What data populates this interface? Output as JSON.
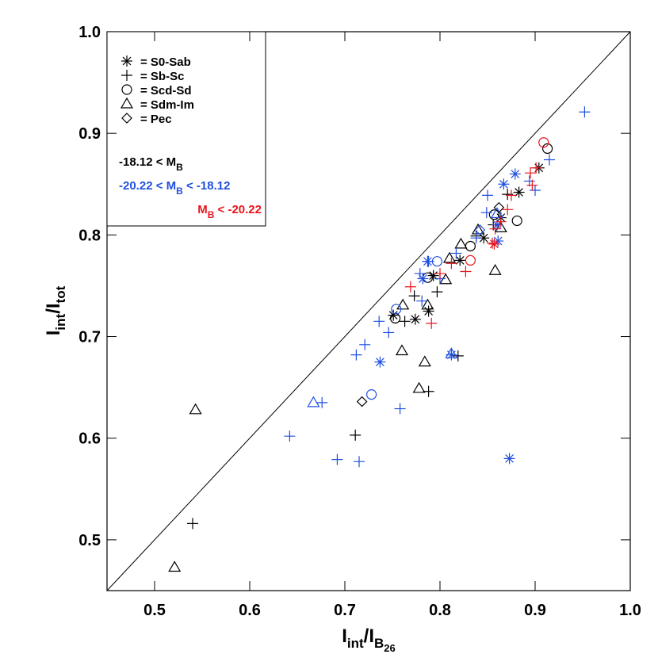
{
  "chart_data": {
    "type": "scatter",
    "xlim": [
      0.45,
      1.0
    ],
    "ylim": [
      0.45,
      1.0
    ],
    "xticks": [
      0.5,
      0.6,
      0.7,
      0.8,
      0.9,
      {
        "value": 1.0,
        "label": "1.0"
      }
    ],
    "yticks": [
      0.5,
      0.6,
      0.7,
      0.8,
      0.9,
      {
        "value": 1.0,
        "label": "1.0"
      }
    ],
    "xlabel": [
      {
        "text": "I"
      },
      {
        "text": "int",
        "level": 1
      },
      {
        "text": "/I"
      },
      {
        "text": "B",
        "level": 1
      },
      {
        "text": "26",
        "level": 2
      }
    ],
    "ylabel": [
      {
        "text": "I"
      },
      {
        "text": "int",
        "level": 1
      },
      {
        "text": "/I"
      },
      {
        "text": "tot",
        "level": 1
      }
    ],
    "identity_line": true,
    "marker_legend": [
      {
        "label": "= S0-Sab",
        "marker": "asterisk"
      },
      {
        "label": "= Sb-Sc",
        "marker": "plus"
      },
      {
        "label": "= Scd-Sd",
        "marker": "circle"
      },
      {
        "label": "= Sdm-Im",
        "marker": "triangle"
      },
      {
        "label": "= Pec",
        "marker": "diamond"
      }
    ],
    "color_legend": [
      {
        "text": "-18.12 < M",
        "sub": "B",
        "color": "#000000"
      },
      {
        "text": "-20.22 < M",
        "sub": "B",
        "after": " < -18.12",
        "color": "#1f4fe0"
      },
      {
        "text": "M",
        "sub": "B",
        "after": " < -20.22",
        "color": "#e8141c"
      }
    ],
    "series": [
      {
        "marker": "asterisk",
        "color": "#000000",
        "x": [
          0.904,
          0.883,
          0.846,
          0.821,
          0.793,
          0.788,
          0.774,
          0.751,
          0.864
        ],
        "y": [
          0.866,
          0.842,
          0.797,
          0.775,
          0.76,
          0.725,
          0.717,
          0.721,
          0.817
        ]
      },
      {
        "marker": "plus",
        "color": "#000000",
        "x": [
          0.711,
          0.54,
          0.788,
          0.819,
          0.763,
          0.773,
          0.797,
          0.838,
          0.856,
          0.871
        ],
        "y": [
          0.603,
          0.516,
          0.646,
          0.681,
          0.715,
          0.74,
          0.744,
          0.799,
          0.81,
          0.84
        ]
      },
      {
        "marker": "circle",
        "color": "#000000",
        "x": [
          0.913,
          0.881,
          0.857,
          0.832,
          0.787,
          0.753
        ],
        "y": [
          0.885,
          0.814,
          0.82,
          0.789,
          0.758,
          0.718
        ]
      },
      {
        "marker": "triangle",
        "color": "#000000",
        "x": [
          0.521,
          0.543,
          0.76,
          0.784,
          0.778,
          0.858,
          0.81,
          0.761,
          0.787,
          0.822,
          0.84,
          0.864,
          0.806
        ],
        "y": [
          0.473,
          0.628,
          0.686,
          0.675,
          0.649,
          0.765,
          0.777,
          0.731,
          0.731,
          0.791,
          0.805,
          0.807,
          0.756
        ]
      },
      {
        "marker": "diamond",
        "color": "#000000",
        "x": [
          0.718,
          0.862
        ],
        "y": [
          0.636,
          0.827
        ]
      },
      {
        "marker": "asterisk",
        "color": "#1f4fe0",
        "x": [
          0.873,
          0.737,
          0.812,
          0.879,
          0.867,
          0.861,
          0.86,
          0.787,
          0.782
        ],
        "y": [
          0.58,
          0.675,
          0.682,
          0.86,
          0.85,
          0.794,
          0.81,
          0.774,
          0.757
        ]
      },
      {
        "marker": "plus",
        "color": "#1f4fe0",
        "x": [
          0.952,
          0.915,
          0.9,
          0.894,
          0.85,
          0.849,
          0.642,
          0.692,
          0.715,
          0.758,
          0.712,
          0.721,
          0.736,
          0.746,
          0.781,
          0.779,
          0.788,
          0.8,
          0.817,
          0.838,
          0.676
        ],
        "y": [
          0.921,
          0.874,
          0.844,
          0.853,
          0.839,
          0.822,
          0.602,
          0.579,
          0.577,
          0.629,
          0.682,
          0.692,
          0.715,
          0.704,
          0.735,
          0.762,
          0.774,
          0.757,
          0.782,
          0.797,
          0.635
        ]
      },
      {
        "marker": "circle",
        "color": "#1f4fe0",
        "x": [
          0.728,
          0.754,
          0.797
        ],
        "y": [
          0.643,
          0.727,
          0.774
        ]
      },
      {
        "marker": "triangle",
        "color": "#1f4fe0",
        "x": [
          0.667,
          0.812,
          0.86
        ],
        "y": [
          0.635,
          0.683,
          0.821
        ]
      },
      {
        "marker": "diamond",
        "color": "#1f4fe0",
        "x": [
          0.842
        ],
        "y": [
          0.805
        ]
      },
      {
        "marker": "plus",
        "color": "#e8141c",
        "x": [
          0.769,
          0.791,
          0.8,
          0.812,
          0.827,
          0.855,
          0.858,
          0.864,
          0.871,
          0.875,
          0.895,
          0.901,
          0.897
        ],
        "y": [
          0.749,
          0.713,
          0.762,
          0.772,
          0.764,
          0.792,
          0.806,
          0.813,
          0.825,
          0.839,
          0.861,
          0.866,
          0.849
        ]
      },
      {
        "marker": "asterisk",
        "color": "#e8141c",
        "x": [
          0.857
        ],
        "y": [
          0.791
        ]
      },
      {
        "marker": "circle",
        "color": "#e8141c",
        "x": [
          0.909,
          0.832
        ],
        "y": [
          0.891,
          0.775
        ]
      }
    ]
  }
}
